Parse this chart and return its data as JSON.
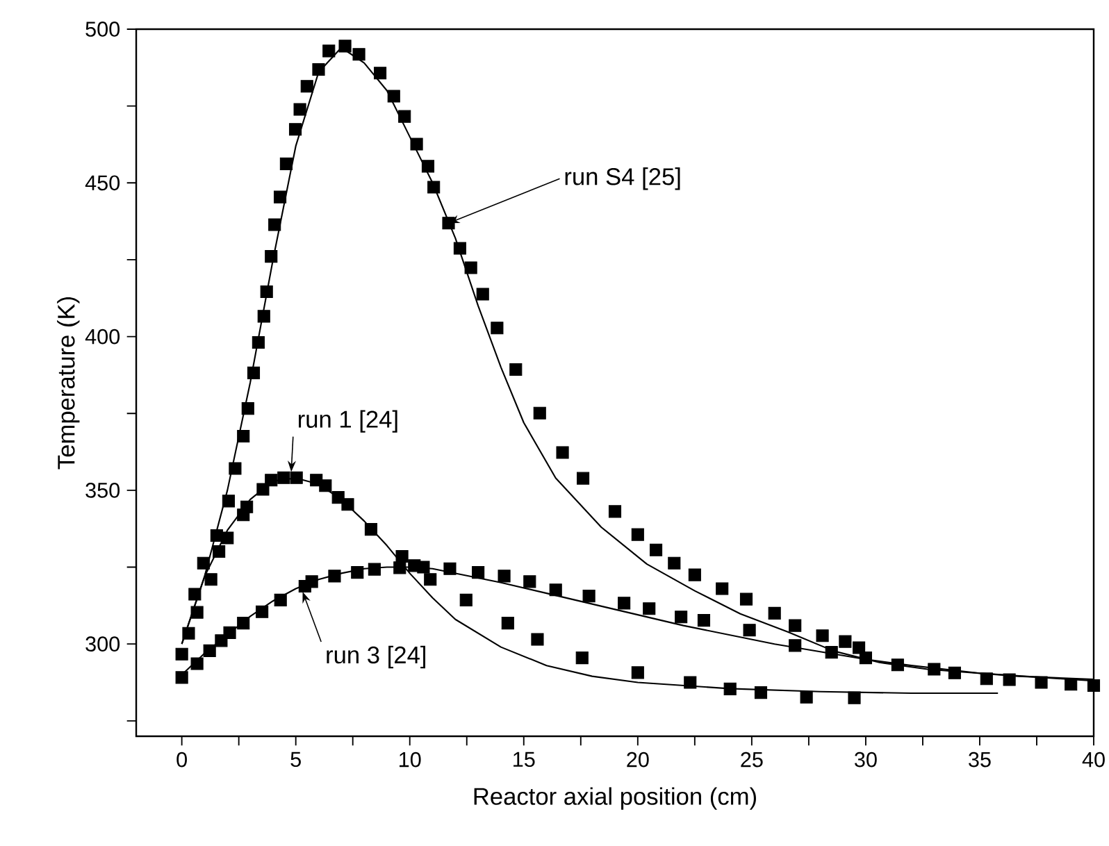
{
  "chart_data": {
    "type": "scatter",
    "xlabel": "Reactor axial position (cm)",
    "ylabel": "Temperature (K)",
    "xlim": [
      -2,
      40
    ],
    "ylim": [
      270,
      500
    ],
    "xticks": [
      0,
      {
        "value": 2.5,
        "label": null
      },
      5,
      {
        "value": 7.5,
        "label": null
      },
      10,
      {
        "value": 12.5,
        "label": null
      },
      15,
      {
        "value": 17.5,
        "label": null
      },
      20,
      {
        "value": 22.5,
        "label": null
      },
      25,
      {
        "value": 27.5,
        "label": null
      },
      30,
      {
        "value": 32.5,
        "label": null
      },
      35,
      {
        "value": 37.5,
        "label": null
      },
      40
    ],
    "yticks": [
      {
        "value": 275,
        "label": null
      },
      300,
      {
        "value": 325,
        "label": null
      },
      350,
      {
        "value": 375,
        "label": null
      },
      400,
      {
        "value": 425,
        "label": null
      },
      450,
      {
        "value": 475,
        "label": null
      },
      500
    ],
    "grid": false,
    "marker": "square",
    "series": [
      {
        "color": "#000000",
        "x": [
          0,
          0.57,
          0.95,
          1.53,
          2.05,
          2.34,
          2.7,
          2.9,
          3.15,
          3.36,
          3.6,
          3.72,
          3.92,
          4.07,
          4.31,
          4.58,
          4.98,
          5.18,
          5.49,
          6.0,
          6.45,
          7.16,
          7.77,
          8.7,
          9.3,
          9.77,
          10.3,
          10.8,
          11.05,
          11.7,
          12.2,
          12.68,
          13.2,
          13.83,
          14.65,
          15.7,
          16.7,
          17.6,
          19.0,
          20.0,
          20.8,
          21.6,
          22.5,
          23.7,
          24.76,
          26.0,
          26.9,
          28.1,
          29.1,
          29.7,
          31.4,
          33.0,
          33.9,
          35.3,
          36.3,
          37.7,
          39.0,
          40.0
        ],
        "values": [
          296.7,
          316.2,
          326.3,
          335.3,
          346.5,
          357.1,
          367.6,
          376.6,
          388.2,
          398.1,
          406.6,
          414.6,
          426.1,
          436.4,
          445.4,
          456.2,
          467.4,
          473.9,
          481.4,
          486.9,
          492.9,
          494.5,
          491.8,
          485.7,
          478.2,
          471.6,
          462.6,
          455.4,
          448.6,
          436.9,
          428.7,
          422.4,
          413.8,
          402.8,
          389.3,
          375.1,
          362.3,
          353.9,
          343.1,
          335.6,
          330.6,
          326.3,
          322.5,
          318.0,
          314.6,
          310.0,
          306.0,
          302.7,
          300.8,
          298.8,
          293.2,
          291.8,
          290.6,
          288.7,
          288.4,
          287.5,
          286.9,
          286.5
        ]
      },
      {
        "color": "#000000",
        "x": [
          0.3,
          0.67,
          1.28,
          1.63,
          2.0,
          2.7,
          2.85,
          3.56,
          3.92,
          4.47,
          5.03,
          5.9,
          6.3,
          6.86,
          7.28,
          8.3,
          9.66,
          10.9,
          12.47,
          14.3,
          15.6,
          17.56,
          20.0,
          22.3,
          24.05,
          25.4,
          27.4,
          29.5
        ],
        "values": [
          303.5,
          310.3,
          321.0,
          330.1,
          334.5,
          342.0,
          344.6,
          350.3,
          353.3,
          354.1,
          354.1,
          353.3,
          351.5,
          347.7,
          345.4,
          337.3,
          328.5,
          321.0,
          314.3,
          306.8,
          301.5,
          295.5,
          290.7,
          287.5,
          285.4,
          284.2,
          282.7,
          282.5
        ]
      },
      {
        "color": "#000000",
        "x": [
          0,
          0.67,
          1.22,
          1.73,
          2.1,
          2.7,
          3.52,
          4.33,
          5.4,
          5.7,
          6.7,
          7.7,
          8.45,
          9.56,
          10.2,
          10.6,
          11.76,
          13.0,
          14.14,
          15.26,
          16.4,
          17.86,
          19.4,
          20.5,
          21.9,
          22.9,
          24.9,
          26.9,
          28.5,
          30.0
        ],
        "values": [
          289.1,
          293.6,
          297.8,
          301.1,
          303.7,
          306.8,
          310.5,
          314.3,
          318.8,
          320.3,
          322.1,
          323.3,
          324.3,
          324.8,
          325.5,
          325.0,
          324.5,
          323.3,
          322.1,
          320.3,
          317.6,
          315.6,
          313.3,
          311.5,
          308.8,
          307.7,
          304.5,
          299.5,
          297.3,
          295.5
        ]
      },
      {
        "type": "line",
        "marker": "none",
        "line_style": "solid",
        "color": "#000000",
        "x": [
          0,
          1,
          2,
          3,
          4,
          5,
          6,
          7,
          8,
          9,
          10,
          11,
          12,
          13,
          14,
          15,
          16.4,
          18.4,
          20.4,
          22.5,
          24.5,
          26.6,
          28.6,
          30.6,
          32.7,
          36.7,
          40
        ],
        "values": [
          300,
          322,
          350,
          385,
          425,
          462,
          486,
          494,
          489,
          480,
          465,
          450,
          432,
          410,
          390,
          372,
          354,
          338,
          326,
          317.3,
          309.8,
          303.9,
          297.7,
          294.0,
          291.8,
          289.5,
          288.5
        ]
      },
      {
        "type": "line",
        "marker": "none",
        "line_style": "solid",
        "color": "#000000",
        "x": [
          0,
          1,
          2,
          3,
          4,
          5,
          6,
          7,
          8,
          9,
          10,
          11,
          12,
          14,
          16,
          18,
          20,
          24,
          28,
          32,
          35.8
        ],
        "values": [
          300,
          322,
          337,
          347,
          353,
          354,
          352,
          347,
          340,
          332,
          323,
          315,
          308,
          299,
          293,
          289.5,
          287.5,
          285.5,
          284.5,
          284,
          284
        ]
      },
      {
        "type": "line",
        "marker": "none",
        "line_style": "solid",
        "color": "#000000",
        "x": [
          0,
          1,
          2,
          3,
          4,
          5,
          6,
          7,
          8,
          9,
          10,
          11,
          12,
          14,
          16,
          18,
          20,
          22,
          24,
          26,
          28,
          30,
          32,
          35,
          38,
          40
        ],
        "values": [
          290,
          297,
          303,
          309,
          314,
          318,
          321,
          323,
          324.5,
          325,
          325,
          324.5,
          323,
          320,
          316.5,
          313,
          309.5,
          306,
          303,
          300,
          297.5,
          295,
          293,
          290.5,
          289,
          288
        ]
      }
    ],
    "annotations": [
      {
        "text": "run S4 [25]",
        "x": 11.7,
        "y": 436.9
      },
      {
        "text": "run 1 [24]",
        "x": 4.8,
        "y": 356
      },
      {
        "text": "run 3 [24]",
        "x": 5.3,
        "y": 317
      }
    ]
  }
}
